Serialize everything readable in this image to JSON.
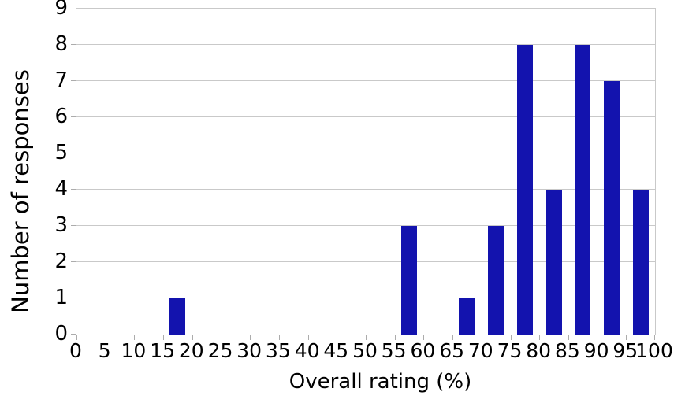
{
  "chart_data": {
    "type": "bar",
    "title": "",
    "xlabel": "Overall rating (%)",
    "ylabel": "Number of responses",
    "xlim": [
      0,
      100
    ],
    "ylim": [
      0,
      9
    ],
    "bin_width": 5,
    "grid": "horizontal",
    "legend": "none",
    "x_ticks": [
      0,
      5,
      10,
      15,
      20,
      25,
      30,
      35,
      40,
      45,
      50,
      55,
      60,
      65,
      70,
      75,
      80,
      85,
      90,
      95,
      100
    ],
    "y_ticks": [
      0,
      1,
      2,
      3,
      4,
      5,
      6,
      7,
      8,
      9
    ],
    "bins": [
      {
        "start": 0,
        "end": 5,
        "value": 0
      },
      {
        "start": 5,
        "end": 10,
        "value": 0
      },
      {
        "start": 10,
        "end": 15,
        "value": 0
      },
      {
        "start": 15,
        "end": 20,
        "value": 1
      },
      {
        "start": 20,
        "end": 25,
        "value": 0
      },
      {
        "start": 25,
        "end": 30,
        "value": 0
      },
      {
        "start": 30,
        "end": 35,
        "value": 0
      },
      {
        "start": 35,
        "end": 40,
        "value": 0
      },
      {
        "start": 40,
        "end": 45,
        "value": 0
      },
      {
        "start": 45,
        "end": 50,
        "value": 0
      },
      {
        "start": 50,
        "end": 55,
        "value": 0
      },
      {
        "start": 55,
        "end": 60,
        "value": 3
      },
      {
        "start": 60,
        "end": 65,
        "value": 0
      },
      {
        "start": 65,
        "end": 70,
        "value": 1
      },
      {
        "start": 70,
        "end": 75,
        "value": 3
      },
      {
        "start": 75,
        "end": 80,
        "value": 8
      },
      {
        "start": 80,
        "end": 85,
        "value": 4
      },
      {
        "start": 85,
        "end": 90,
        "value": 8
      },
      {
        "start": 90,
        "end": 95,
        "value": 7
      },
      {
        "start": 95,
        "end": 100,
        "value": 4
      }
    ],
    "colors": {
      "bar": "#1313AE",
      "grid": "#C9C9C9",
      "axis": "#ACACAC",
      "text": "#000000",
      "background": "#FFFFFF"
    }
  }
}
